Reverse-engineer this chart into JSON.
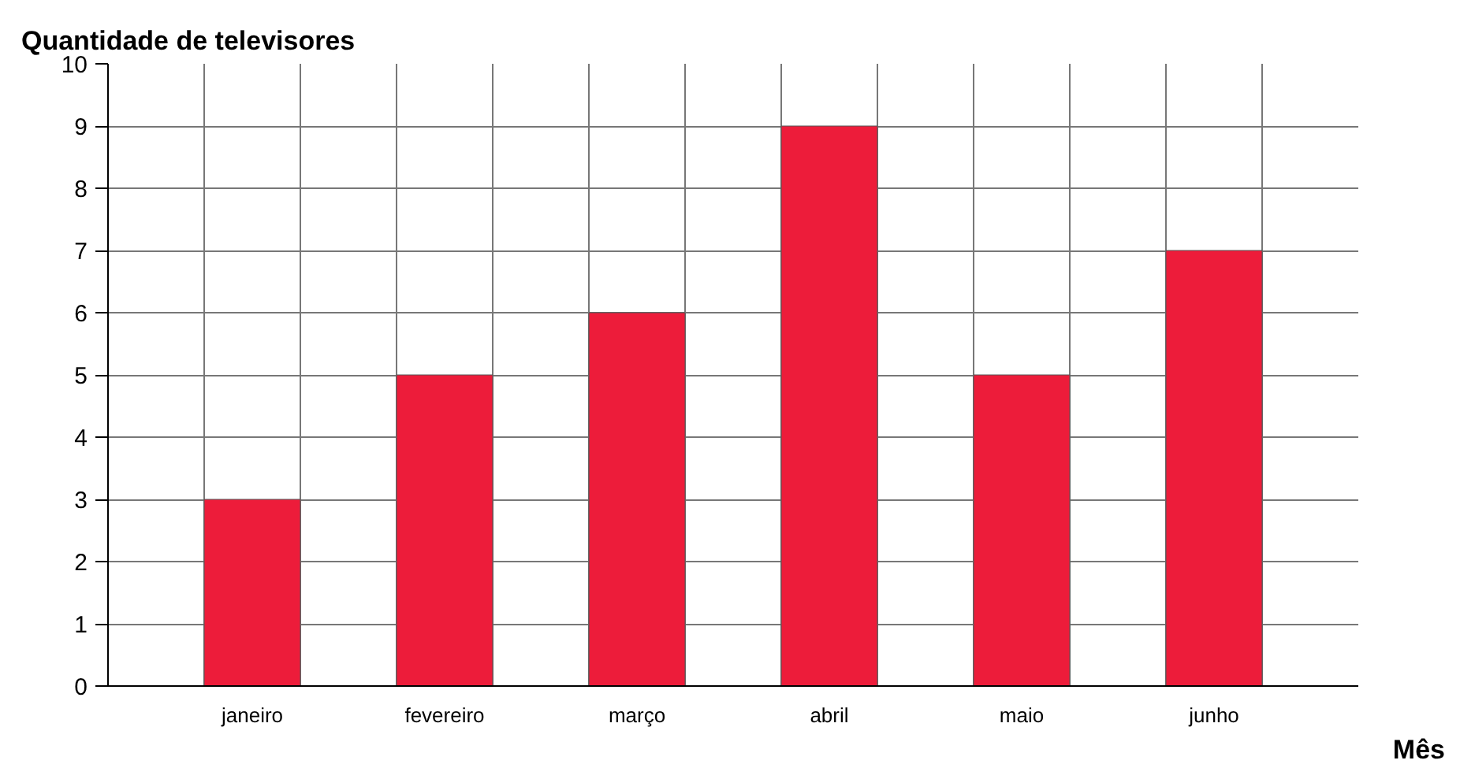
{
  "chart_data": {
    "type": "bar",
    "ylabel": "Quantidade de televisores",
    "xlabel": "Mês",
    "categories": [
      "janeiro",
      "fevereiro",
      "março",
      "abril",
      "maio",
      "junho"
    ],
    "values": [
      3,
      5,
      6,
      9,
      5,
      7
    ],
    "color": "#ed1c3a",
    "ylim": [
      0,
      10
    ],
    "yticks": [
      0,
      1,
      2,
      3,
      4,
      5,
      6,
      7,
      8,
      9,
      10
    ],
    "grid": true
  }
}
